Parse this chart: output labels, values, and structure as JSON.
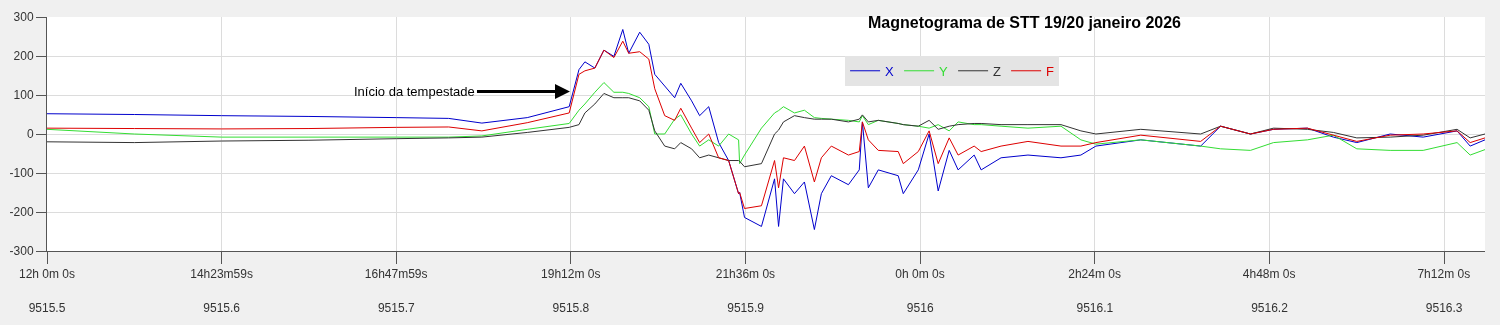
{
  "chart_data": {
    "type": "line",
    "title": "Magnetograma de STT 19/20 janeiro 2026",
    "x": [
      9515.5,
      9515.55,
      9515.6,
      9515.65,
      9515.7,
      9515.73,
      9515.749,
      9515.775,
      9515.799,
      9515.8046,
      9515.808,
      9515.8137,
      9515.8189,
      9515.8246,
      9515.8297,
      9515.8331,
      9515.8394,
      9515.8446,
      9515.848,
      9515.8537,
      9515.8594,
      9515.8629,
      9515.8691,
      9515.8737,
      9515.8789,
      9515.8846,
      9515.8903,
      9515.896,
      9515.8966,
      9515.8994,
      9515.9091,
      9515.9166,
      9515.9189,
      9515.9217,
      9515.928,
      9515.9337,
      9515.9394,
      9515.9434,
      9515.9491,
      9515.9589,
      9515.9651,
      9515.9669,
      9515.9703,
      9515.976,
      9515.9874,
      9515.9903,
      9515.9989,
      9516.0051,
      9516.0103,
      9516.0166,
      9516.0217,
      9516.0309,
      9516.0349,
      9516.0463,
      9516.0617,
      9516.0806,
      9516.092,
      9516.1006,
      9516.1263,
      9516.1606,
      9516.172,
      9516.1891,
      9516.2023,
      9516.2217,
      9516.2366,
      9516.25,
      9516.2691,
      9516.288,
      9516.3074,
      9516.3149,
      9516.3234
    ],
    "series": [
      {
        "name": "X",
        "color": "#0000cc",
        "values": [
          52,
          50,
          47,
          45,
          42,
          40,
          28,
          42,
          70,
          165,
          185,
          169,
          215,
          199,
          268,
          207,
          261,
          230,
          153,
          123,
          93,
          130,
          85,
          47,
          70,
          -22,
          -68,
          -153,
          -150,
          -214,
          -237,
          -115,
          -237,
          -115,
          -153,
          -123,
          -245,
          -153,
          -107,
          -130,
          -92,
          31,
          -138,
          -92,
          -107,
          -153,
          -92,
          0,
          -146,
          -42,
          -92,
          -54,
          -92,
          -61,
          -54,
          -61,
          -54,
          -31,
          -15,
          -31,
          20,
          0,
          12,
          15,
          -8,
          -22,
          0,
          -8,
          8,
          -31,
          -15
        ]
      },
      {
        "name": "Y",
        "color": "#33dd33",
        "values": [
          12,
          0,
          -8,
          -8,
          -8,
          -8,
          -5,
          12,
          27,
          61,
          77,
          107,
          132,
          107,
          107,
          104,
          93,
          70,
          0,
          0,
          38,
          49,
          0,
          -31,
          -15,
          -31,
          0,
          -15,
          -76,
          -54,
          15,
          54,
          60,
          70,
          54,
          61,
          42,
          40,
          38,
          35,
          31,
          47,
          24,
          35,
          27,
          24,
          20,
          15,
          24,
          8,
          31,
          24,
          24,
          20,
          15,
          20,
          -15,
          -26,
          -15,
          -31,
          -38,
          -42,
          -22,
          -15,
          -3,
          -38,
          -42,
          -42,
          -22,
          -54,
          -40
        ]
      },
      {
        "name": "Z",
        "color": "#333333",
        "values": [
          -20,
          -22,
          -18,
          -16,
          -12,
          -10,
          -8,
          4,
          17,
          24,
          54,
          77,
          104,
          93,
          93,
          93,
          85,
          61,
          8,
          -31,
          -38,
          -22,
          -38,
          -61,
          -54,
          -61,
          -68,
          -68,
          -70,
          -84,
          -76,
          0,
          10,
          31,
          47,
          42,
          38,
          38,
          38,
          31,
          38,
          49,
          31,
          35,
          27,
          24,
          20,
          35,
          12,
          20,
          24,
          27,
          27,
          24,
          24,
          24,
          8,
          0,
          12,
          0,
          20,
          0,
          15,
          12,
          4,
          -10,
          -8,
          -3,
          12,
          -10,
          0
        ]
      },
      {
        "name": "F",
        "color": "#dd0000",
        "values": [
          15,
          14,
          13,
          14,
          17,
          18,
          8,
          29,
          54,
          153,
          162,
          169,
          215,
          196,
          238,
          207,
          211,
          192,
          116,
          47,
          35,
          66,
          15,
          -22,
          0,
          -61,
          -68,
          -153,
          -150,
          -191,
          -184,
          -68,
          -138,
          -61,
          -68,
          -31,
          -123,
          -61,
          -31,
          -54,
          -45,
          31,
          -15,
          -42,
          -45,
          -76,
          -45,
          8,
          -76,
          -10,
          -54,
          -31,
          -45,
          -31,
          -19,
          -31,
          -31,
          -22,
          -3,
          -19,
          20,
          0,
          12,
          15,
          -3,
          -19,
          -3,
          0,
          8,
          -22,
          -10
        ]
      }
    ],
    "xlim": [
      9515.5,
      9516.3234
    ],
    "xticks": [
      9515.5,
      9515.6,
      9515.7,
      9515.8,
      9515.9,
      9516,
      9516.1,
      9516.2,
      9516.3
    ],
    "x2lim": [
      "2026-01-19T12:00",
      "2026-01-20T07:46"
    ],
    "x2ticks": [
      {
        "value": "2026-01-19T12:00",
        "label": "12h 0m 0s"
      },
      {
        "value": "2026-01-19T14:24",
        "label": "14h23m59s"
      },
      {
        "value": "2026-01-19T16:48",
        "label": "16h47m59s"
      },
      {
        "value": "2026-01-19T19:12",
        "label": "19h12m 0s"
      },
      {
        "value": "2026-01-19T21:36",
        "label": "21h36m 0s"
      },
      {
        "value": "2026-01-20T00:00",
        "label": "0h 0m 0s"
      },
      {
        "value": "2026-01-20T02:24",
        "label": "2h24m 0s"
      },
      {
        "value": "2026-01-20T04:48",
        "label": "4h48m 0s"
      },
      {
        "value": "2026-01-20T07:12",
        "label": "7h12m 0s"
      }
    ],
    "ylim": [
      -300,
      300
    ],
    "yticks": [
      -300,
      -200,
      -100,
      0,
      100,
      200,
      300
    ],
    "annotations": [
      {
        "text": "Início da tempestade",
        "x": 9515.8006,
        "y": 109
      }
    ],
    "grid": true,
    "legend": "top",
    "marker": "none",
    "line_style": "solid"
  }
}
